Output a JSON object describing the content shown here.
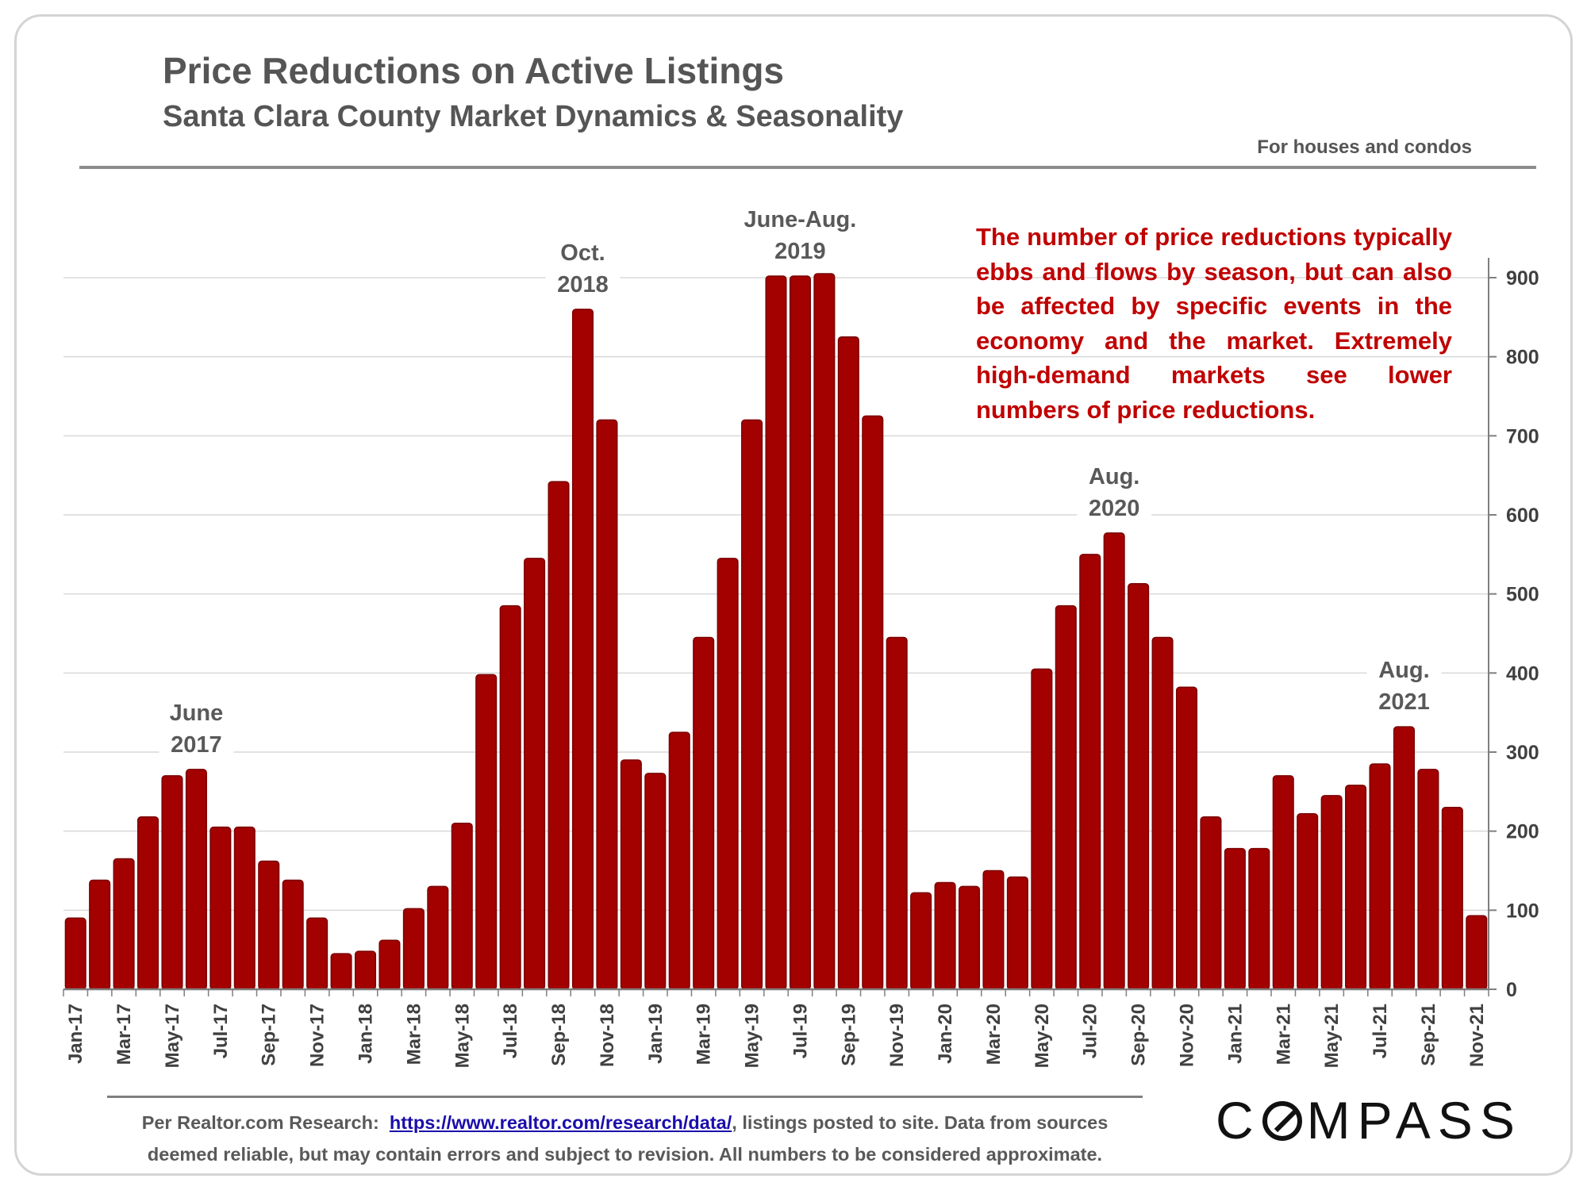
{
  "header": {
    "title": "Price Reductions on Active Listings",
    "subtitle": "Santa Clara County Market Dynamics & Seasonality",
    "note": "For houses and condos"
  },
  "annotation": "The number of price reductions typically ebbs and flows by season, but can also be affected by specific events in the economy and the market. Extremely high-demand markets see lower numbers of price reductions.",
  "footer": {
    "prefix": "Per Realtor.com Research:",
    "link": "https://www.realtor.com/research/data/",
    "suffix": ", listings posted to site. Data from sources",
    "line2": "deemed reliable, but may contain errors and subject to revision. All numbers to be considered approximate."
  },
  "logo": {
    "before": "C",
    "after": "MPASS"
  },
  "colors": {
    "bar": "#a30000",
    "bar_edge": "#7a0000",
    "annotation": "#c00000",
    "grid": "#d9d9d9"
  },
  "chart_data": {
    "type": "bar",
    "ylim": [
      0,
      900
    ],
    "yticks": [
      0,
      100,
      200,
      300,
      400,
      500,
      600,
      700,
      800,
      900
    ],
    "y_axis_side": "right",
    "grid": true,
    "x": [
      "Jan-17",
      "Feb-17",
      "Mar-17",
      "Apr-17",
      "May-17",
      "Jun-17",
      "Jul-17",
      "Aug-17",
      "Sep-17",
      "Oct-17",
      "Nov-17",
      "Dec-17",
      "Jan-18",
      "Feb-18",
      "Mar-18",
      "Apr-18",
      "May-18",
      "Jun-18",
      "Jul-18",
      "Aug-18",
      "Sep-18",
      "Oct-18",
      "Nov-18",
      "Dec-18",
      "Jan-19",
      "Feb-19",
      "Mar-19",
      "Apr-19",
      "May-19",
      "Jun-19",
      "Jul-19",
      "Aug-19",
      "Sep-19",
      "Oct-19",
      "Nov-19",
      "Dec-19",
      "Jan-20",
      "Feb-20",
      "Mar-20",
      "Apr-20",
      "May-20",
      "Jun-20",
      "Jul-20",
      "Aug-20",
      "Sep-20",
      "Oct-20",
      "Nov-20",
      "Dec-20",
      "Jan-21",
      "Feb-21",
      "Mar-21",
      "Apr-21",
      "May-21",
      "Jun-21",
      "Jul-21",
      "Aug-21",
      "Sep-21",
      "Oct-21",
      "Nov-21"
    ],
    "xtick_labels": [
      "Jan-17",
      "Mar-17",
      "May-17",
      "Jul-17",
      "Sep-17",
      "Nov-17",
      "Jan-18",
      "Mar-18",
      "May-18",
      "Jul-18",
      "Sep-18",
      "Nov-18",
      "Jan-19",
      "Mar-19",
      "May-19",
      "Jul-19",
      "Sep-19",
      "Nov-19",
      "Jan-20",
      "Mar-20",
      "May-20",
      "Jul-20",
      "Sep-20",
      "Nov-20",
      "Jan-21",
      "Mar-21",
      "May-21",
      "Jul-21",
      "Sep-21",
      "Nov-21"
    ],
    "values": [
      90,
      138,
      165,
      218,
      270,
      278,
      205,
      205,
      162,
      138,
      90,
      45,
      48,
      62,
      102,
      130,
      210,
      398,
      485,
      545,
      642,
      860,
      720,
      290,
      273,
      325,
      445,
      545,
      720,
      902,
      902,
      905,
      825,
      725,
      445,
      122,
      135,
      130,
      150,
      142,
      405,
      485,
      550,
      577,
      513,
      445,
      382,
      218,
      178,
      178,
      270,
      222,
      245,
      258,
      285,
      332,
      278,
      230,
      93
    ],
    "annotations": [
      {
        "index": 5,
        "lines": [
          "June",
          "2017"
        ]
      },
      {
        "index": 21,
        "lines": [
          "Oct.",
          "2018"
        ]
      },
      {
        "index": 30,
        "lines": [
          "June-Aug.",
          "2019"
        ]
      },
      {
        "index": 43,
        "lines": [
          "Aug.",
          "2020"
        ]
      },
      {
        "index": 55,
        "lines": [
          "Aug.",
          "2021"
        ]
      }
    ]
  }
}
